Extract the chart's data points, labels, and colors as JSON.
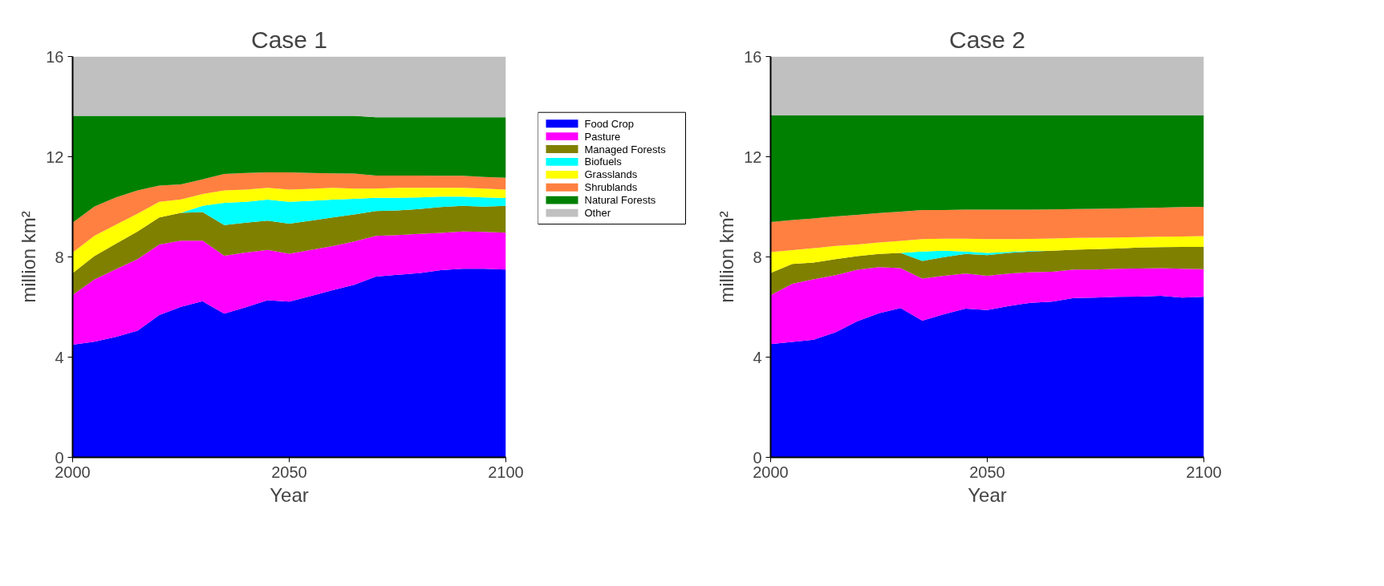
{
  "chart_data": [
    {
      "type": "area",
      "title": "Case 1",
      "xlabel": "Year",
      "ylabel": "million km²",
      "stacked": true,
      "legend": "right",
      "grid": false,
      "xlim": [
        2000,
        2100
      ],
      "xticks": [
        2000,
        2050,
        2100
      ],
      "ylim": [
        0,
        16
      ],
      "yticks": [
        0,
        4,
        8,
        12,
        16
      ],
      "x": [
        2000,
        2005,
        2010,
        2015,
        2020,
        2025,
        2030,
        2035,
        2040,
        2045,
        2050,
        2055,
        2060,
        2065,
        2070,
        2075,
        2080,
        2085,
        2090,
        2095,
        2100
      ],
      "series": [
        {
          "name": "Food Crop",
          "color": "#0000ff",
          "values": [
            4.5,
            4.62,
            4.81,
            5.06,
            5.68,
            6.01,
            6.23,
            5.74,
            5.99,
            6.27,
            6.22,
            6.44,
            6.67,
            6.89,
            7.22,
            7.29,
            7.35,
            7.47,
            7.53,
            7.53,
            7.5
          ]
        },
        {
          "name": "Pasture",
          "color": "#ff00ff",
          "values": [
            1.98,
            2.48,
            2.7,
            2.85,
            2.82,
            2.64,
            2.42,
            2.31,
            2.19,
            2.01,
            1.91,
            1.84,
            1.76,
            1.73,
            1.62,
            1.58,
            1.57,
            1.49,
            1.49,
            1.47,
            1.47
          ]
        },
        {
          "name": "Managed Forests",
          "color": "#808000",
          "values": [
            0.87,
            0.93,
            1.02,
            1.11,
            1.08,
            1.11,
            1.14,
            1.22,
            1.19,
            1.17,
            1.2,
            1.17,
            1.15,
            1.08,
            0.99,
            0.99,
            0.99,
            1.03,
            1.02,
            1.01,
            1.07
          ]
        },
        {
          "name": "Biofuels",
          "color": "#00ffff",
          "values": [
            0,
            0,
            0,
            0,
            0,
            0,
            0.25,
            0.89,
            0.83,
            0.84,
            0.87,
            0.79,
            0.71,
            0.62,
            0.53,
            0.5,
            0.47,
            0.42,
            0.37,
            0.37,
            0.31
          ]
        },
        {
          "name": "Grasslands",
          "color": "#ffff00",
          "values": [
            0.83,
            0.81,
            0.76,
            0.71,
            0.62,
            0.54,
            0.47,
            0.5,
            0.49,
            0.47,
            0.49,
            0.48,
            0.47,
            0.41,
            0.37,
            0.4,
            0.38,
            0.35,
            0.35,
            0.35,
            0.34
          ]
        },
        {
          "name": "Shrublands",
          "color": "#ff8040",
          "values": [
            1.19,
            1.17,
            1.09,
            0.93,
            0.65,
            0.6,
            0.59,
            0.65,
            0.66,
            0.62,
            0.69,
            0.63,
            0.58,
            0.6,
            0.52,
            0.49,
            0.49,
            0.48,
            0.48,
            0.46,
            0.47
          ]
        },
        {
          "name": "Natural Forests",
          "color": "#008000",
          "values": [
            4.26,
            3.62,
            3.25,
            2.97,
            2.78,
            2.73,
            2.53,
            2.32,
            2.28,
            2.25,
            2.25,
            2.28,
            2.29,
            2.3,
            2.33,
            2.33,
            2.33,
            2.34,
            2.34,
            2.39,
            2.42
          ]
        },
        {
          "name": "Other",
          "color": "#c0c0c0",
          "values": [
            2.37,
            2.37,
            2.37,
            2.37,
            2.37,
            2.37,
            2.37,
            2.37,
            2.37,
            2.37,
            2.37,
            2.37,
            2.37,
            2.37,
            2.42,
            2.42,
            2.42,
            2.42,
            2.42,
            2.42,
            2.42
          ]
        }
      ]
    },
    {
      "type": "area",
      "title": "Case 2",
      "xlabel": "Year",
      "ylabel": "million km²",
      "stacked": true,
      "grid": false,
      "xlim": [
        2000,
        2100
      ],
      "xticks": [
        2000,
        2050,
        2100
      ],
      "ylim": [
        0,
        16
      ],
      "yticks": [
        0,
        4,
        8,
        12,
        16
      ],
      "x": [
        2000,
        2005,
        2010,
        2015,
        2020,
        2025,
        2030,
        2035,
        2040,
        2045,
        2050,
        2055,
        2060,
        2065,
        2070,
        2075,
        2080,
        2085,
        2090,
        2095,
        2100
      ],
      "series": [
        {
          "color": "#0000ff",
          "values": [
            4.52,
            4.61,
            4.7,
            4.99,
            5.43,
            5.75,
            5.96,
            5.46,
            5.71,
            5.94,
            5.88,
            6.04,
            6.17,
            6.22,
            6.36,
            6.38,
            6.41,
            6.42,
            6.45,
            6.38,
            6.41
          ]
        },
        {
          "color": "#ff00ff",
          "values": [
            1.95,
            2.32,
            2.41,
            2.28,
            2.06,
            1.84,
            1.59,
            1.68,
            1.54,
            1.4,
            1.37,
            1.3,
            1.22,
            1.19,
            1.14,
            1.12,
            1.12,
            1.12,
            1.1,
            1.15,
            1.1
          ]
        },
        {
          "color": "#808000",
          "values": [
            0.89,
            0.79,
            0.67,
            0.64,
            0.54,
            0.53,
            0.61,
            0.7,
            0.74,
            0.78,
            0.82,
            0.82,
            0.83,
            0.84,
            0.79,
            0.81,
            0.81,
            0.84,
            0.84,
            0.87,
            0.89
          ]
        },
        {
          "color": "#00ffff",
          "values": [
            0,
            0,
            0,
            0,
            0,
            0,
            0,
            0.38,
            0.26,
            0.1,
            0.09,
            0.04,
            0.02,
            0,
            0,
            0,
            0,
            0,
            0,
            0,
            0
          ]
        },
        {
          "color": "#ffff00",
          "values": [
            0.83,
            0.55,
            0.57,
            0.53,
            0.47,
            0.46,
            0.48,
            0.49,
            0.48,
            0.51,
            0.55,
            0.51,
            0.48,
            0.49,
            0.47,
            0.46,
            0.44,
            0.41,
            0.42,
            0.42,
            0.43
          ]
        },
        {
          "color": "#ff8040",
          "values": [
            1.2,
            1.2,
            1.19,
            1.18,
            1.18,
            1.17,
            1.17,
            1.16,
            1.14,
            1.16,
            1.18,
            1.18,
            1.17,
            1.16,
            1.15,
            1.15,
            1.16,
            1.16,
            1.16,
            1.17,
            1.17
          ]
        },
        {
          "color": "#008000",
          "values": [
            4.26,
            4.18,
            4.11,
            4.03,
            3.97,
            3.9,
            3.84,
            3.78,
            3.78,
            3.76,
            3.76,
            3.76,
            3.76,
            3.75,
            3.74,
            3.73,
            3.71,
            3.7,
            3.68,
            3.66,
            3.65
          ]
        },
        {
          "color": "#c0c0c0",
          "values": [
            2.35,
            2.35,
            2.35,
            2.35,
            2.35,
            2.35,
            2.35,
            2.35,
            2.35,
            2.35,
            2.35,
            2.35,
            2.35,
            2.35,
            2.35,
            2.35,
            2.35,
            2.35,
            2.35,
            2.35,
            2.35
          ]
        }
      ]
    }
  ]
}
